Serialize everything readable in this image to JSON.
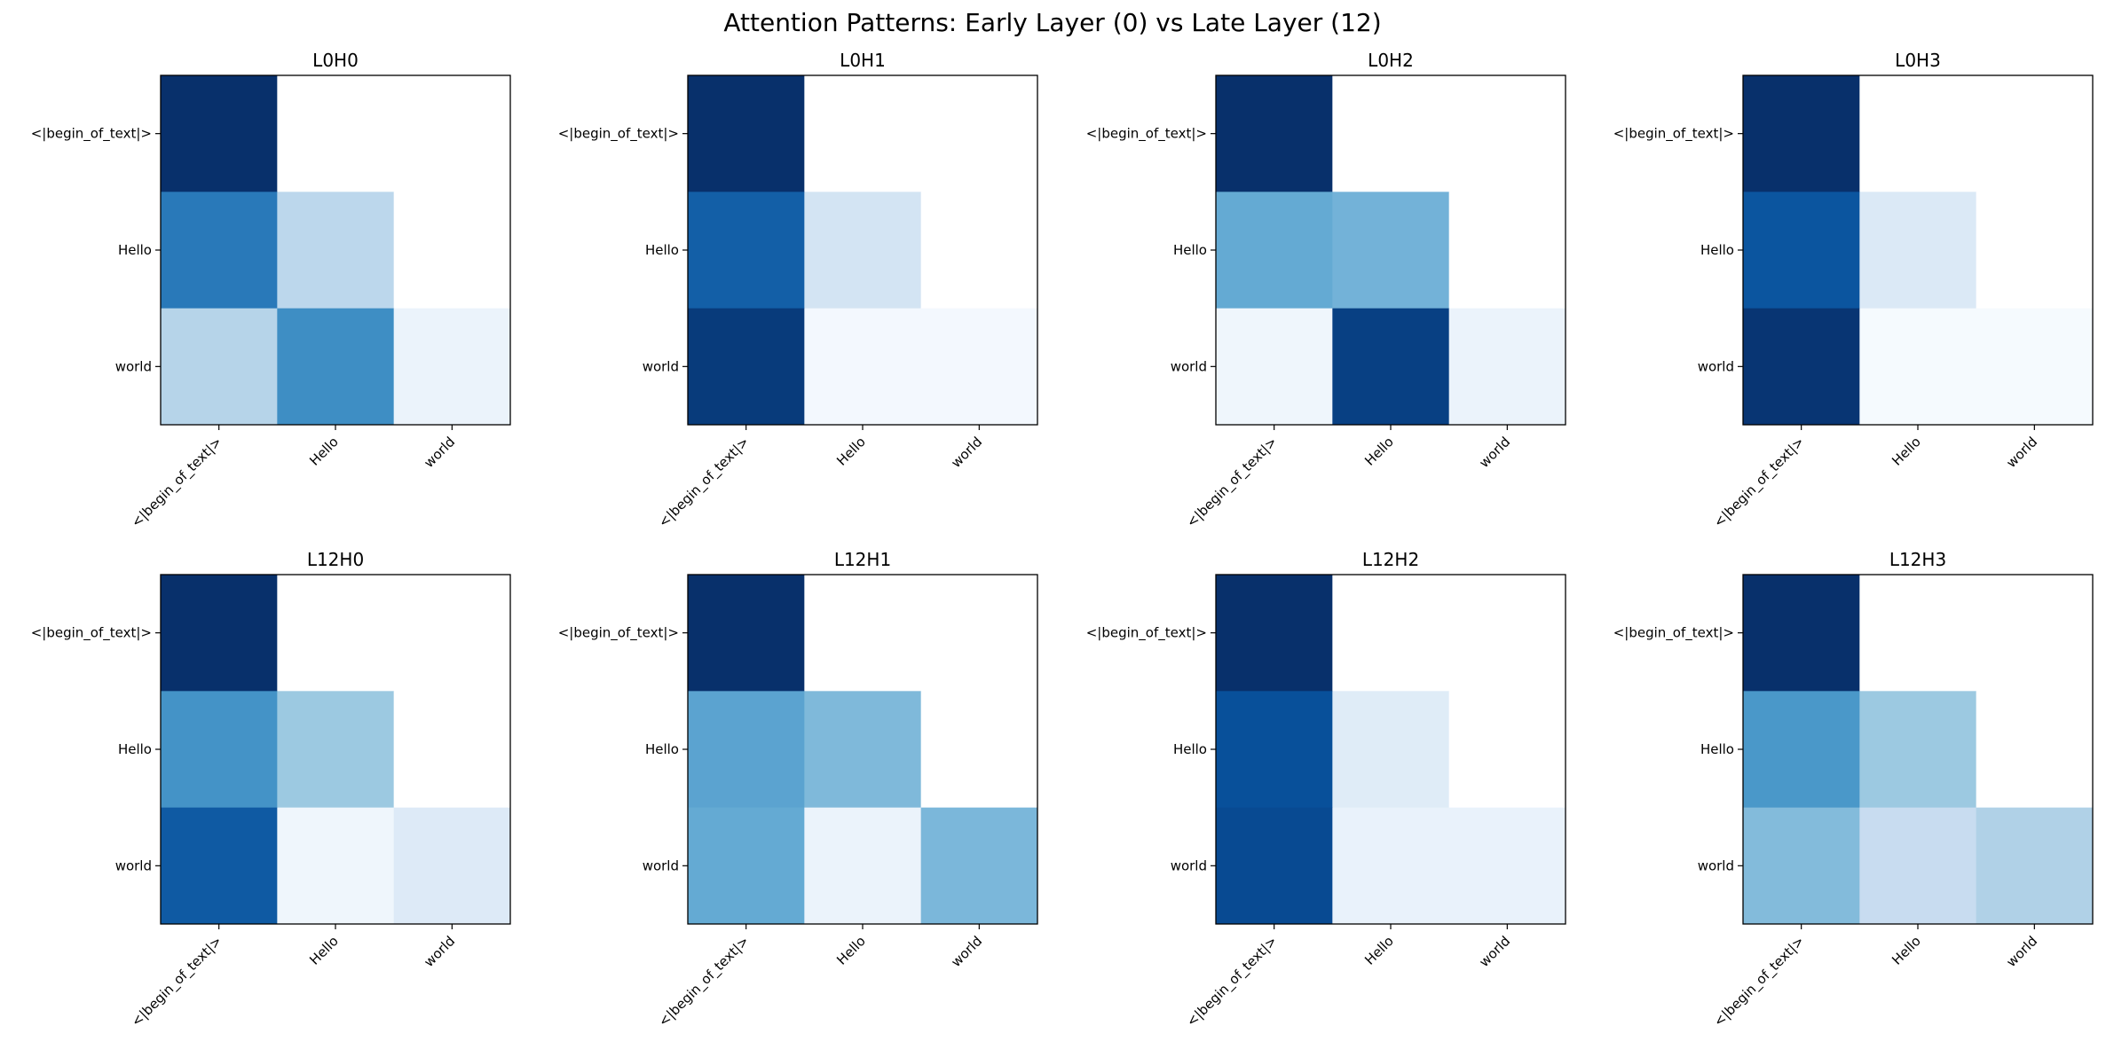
{
  "chart_data": {
    "type": "heatmap",
    "colormap": "Blues",
    "title": "Attention Patterns: Early Layer (0) vs Late Layer (12)",
    "tokens": [
      "<|begin_of_text|>",
      "Hello",
      "world"
    ],
    "vmin": 0,
    "vmax": 1,
    "layout": {
      "rows": 2,
      "cols": 4
    },
    "panels": [
      {
        "title": "L0H0",
        "matrix": [
          [
            1.0,
            0.0,
            0.0
          ],
          [
            0.72,
            0.28,
            0.0
          ],
          [
            0.3,
            0.64,
            0.06
          ]
        ]
      },
      {
        "title": "L0H1",
        "matrix": [
          [
            1.0,
            0.0,
            0.0
          ],
          [
            0.82,
            0.18,
            0.0
          ],
          [
            0.96,
            0.02,
            0.02
          ]
        ]
      },
      {
        "title": "L0H2",
        "matrix": [
          [
            1.0,
            0.0,
            0.0
          ],
          [
            0.52,
            0.48,
            0.0
          ],
          [
            0.04,
            0.94,
            0.06
          ]
        ]
      },
      {
        "title": "L0H3",
        "matrix": [
          [
            1.0,
            0.0,
            0.0
          ],
          [
            0.86,
            0.14,
            0.0
          ],
          [
            0.98,
            0.01,
            0.01
          ]
        ]
      },
      {
        "title": "L12H0",
        "matrix": [
          [
            1.0,
            0.0,
            0.0
          ],
          [
            0.62,
            0.38,
            0.0
          ],
          [
            0.84,
            0.04,
            0.13
          ]
        ]
      },
      {
        "title": "L12H1",
        "matrix": [
          [
            1.0,
            0.0,
            0.0
          ],
          [
            0.55,
            0.45,
            0.0
          ],
          [
            0.52,
            0.06,
            0.46
          ]
        ]
      },
      {
        "title": "L12H2",
        "matrix": [
          [
            1.0,
            0.0,
            0.0
          ],
          [
            0.88,
            0.12,
            0.0
          ],
          [
            0.9,
            0.07,
            0.07
          ]
        ]
      },
      {
        "title": "L12H3",
        "matrix": [
          [
            1.0,
            0.0,
            0.0
          ],
          [
            0.6,
            0.38,
            0.0
          ],
          [
            0.44,
            0.24,
            0.32
          ]
        ]
      }
    ]
  }
}
